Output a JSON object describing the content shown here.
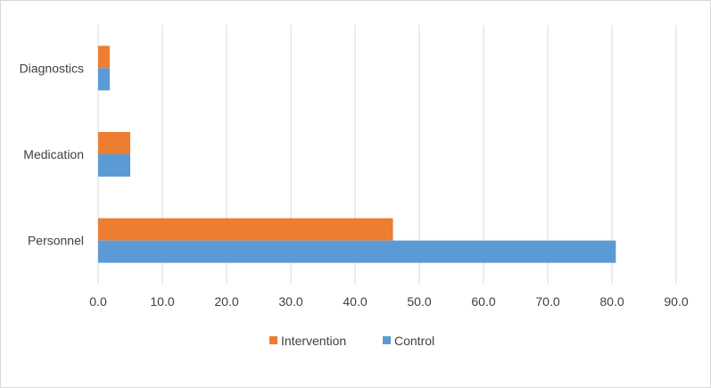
{
  "chart_data": {
    "type": "bar",
    "orientation": "horizontal",
    "title": "",
    "xlabel": "",
    "ylabel": "",
    "categories": [
      "Diagnostics",
      "Medication",
      "Personnel"
    ],
    "series": [
      {
        "name": "Intervention",
        "color": "#ED7D31",
        "values": [
          1.8,
          5.0,
          45.9
        ]
      },
      {
        "name": "Control",
        "color": "#5B9BD5",
        "values": [
          1.8,
          5.0,
          80.6
        ]
      }
    ],
    "xlim": [
      0,
      90
    ],
    "xticks": [
      "0.0",
      "10.0",
      "20.0",
      "30.0",
      "40.0",
      "50.0",
      "60.0",
      "70.0",
      "80.0",
      "90.0"
    ],
    "grid": "vertical",
    "legend_position": "bottom"
  }
}
